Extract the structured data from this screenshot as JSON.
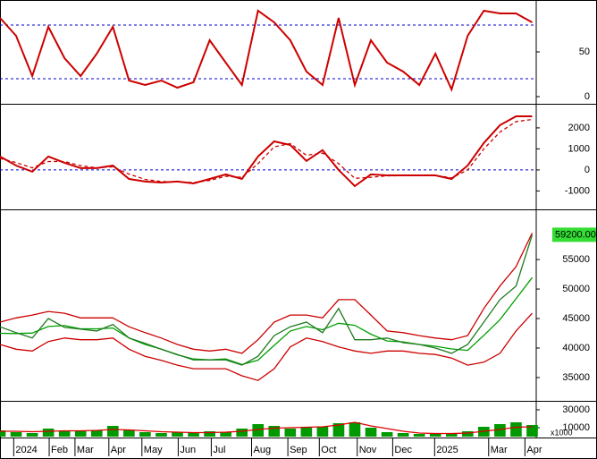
{
  "chart_data": [
    {
      "type": "line",
      "x": [
        0,
        2,
        4,
        6,
        8,
        10,
        12,
        14,
        16,
        18,
        20,
        22,
        24,
        26,
        28,
        30,
        32,
        34,
        36,
        38,
        40,
        42,
        44,
        46,
        48,
        50,
        52,
        54,
        56,
        58,
        60,
        62,
        64,
        66
      ],
      "xlim": [
        0,
        66.5
      ],
      "ylim": [
        -7,
        108
      ],
      "yticks": [
        50,
        0
      ],
      "ref_lines": [
        20,
        80
      ],
      "series": [
        {
          "color": "#cc0000",
          "values": [
            88,
            68,
            23,
            78,
            43,
            23,
            48,
            78,
            18,
            13,
            18,
            10,
            16,
            63,
            38,
            13,
            96,
            83,
            63,
            28,
            13,
            88,
            13,
            63,
            38,
            28,
            13,
            48,
            8,
            68,
            96,
            93,
            93,
            83
          ]
        }
      ]
    },
    {
      "type": "line",
      "x": [
        0,
        2,
        4,
        6,
        8,
        10,
        12,
        14,
        16,
        18,
        20,
        22,
        24,
        26,
        28,
        30,
        32,
        34,
        36,
        38,
        40,
        42,
        44,
        46,
        48,
        50,
        52,
        54,
        56,
        58,
        60,
        62,
        64,
        66
      ],
      "xlim": [
        0,
        66.5
      ],
      "ylim": [
        -1790,
        3060
      ],
      "yticks": [
        2000,
        1000,
        0,
        -1000
      ],
      "ref_lines": [
        0
      ],
      "series": [
        {
          "color": "#cc0000",
          "values": [
            640,
            210,
            -85,
            640,
            340,
            85,
            85,
            210,
            -430,
            -550,
            -600,
            -550,
            -640,
            -430,
            -210,
            -430,
            640,
            1360,
            1190,
            430,
            940,
            0,
            -770,
            -210,
            -260,
            -260,
            -260,
            -260,
            -430,
            210,
            1280,
            2130,
            2550,
            2550
          ]
        },
        {
          "color": "#cc0000",
          "dashed": true,
          "values": [
            550,
            350,
            100,
            400,
            400,
            200,
            100,
            150,
            -200,
            -450,
            -550,
            -570,
            -600,
            -500,
            -300,
            -350,
            300,
            1100,
            1250,
            700,
            800,
            300,
            -400,
            -350,
            -280,
            -270,
            -260,
            -260,
            -380,
            0,
            1000,
            1800,
            2300,
            2400
          ]
        }
      ]
    },
    {
      "type": "line",
      "x": [
        0,
        2,
        4,
        6,
        8,
        10,
        12,
        14,
        16,
        18,
        20,
        22,
        24,
        26,
        28,
        30,
        32,
        34,
        36,
        38,
        40,
        42,
        44,
        46,
        48,
        50,
        52,
        54,
        56,
        58,
        60,
        62,
        64,
        66
      ],
      "xlim": [
        0,
        66.5
      ],
      "ylim": [
        31200,
        63200
      ],
      "yticks": [
        55000,
        50000,
        45000,
        40000,
        35000
      ],
      "last_price": {
        "value": 59200,
        "label": "59200.00"
      },
      "series": [
        {
          "color": "#cc0000",
          "values": [
            44400,
            45100,
            45600,
            46200,
            45900,
            45100,
            45100,
            45100,
            43600,
            42600,
            41700,
            40600,
            39800,
            39500,
            39800,
            39100,
            41400,
            44400,
            45600,
            45600,
            45100,
            48200,
            48200,
            45600,
            42900,
            42600,
            42100,
            41700,
            41400,
            42100,
            46700,
            50500,
            53800,
            59500
          ]
        },
        {
          "color": "#cc0000",
          "values": [
            40600,
            39800,
            39500,
            41100,
            41700,
            41400,
            41400,
            41700,
            39800,
            38600,
            37900,
            37100,
            36500,
            36500,
            36500,
            35300,
            34500,
            36500,
            40200,
            41700,
            41100,
            40200,
            39500,
            39100,
            39500,
            39500,
            39100,
            38900,
            38300,
            37100,
            37600,
            39100,
            42900,
            45900
          ]
        },
        {
          "color": "#00a000",
          "values": [
            42500,
            42450,
            42550,
            43650,
            43800,
            43250,
            43250,
            43400,
            41700,
            40600,
            39800,
            38850,
            38150,
            38000,
            38150,
            37200,
            37950,
            40450,
            42900,
            43650,
            43100,
            44200,
            43850,
            42350,
            41200,
            41050,
            40600,
            40300,
            39850,
            39600,
            42150,
            44800,
            48350,
            51950
          ]
        },
        {
          "color": "#1f7a1f",
          "values": [
            43600,
            42600,
            41700,
            45000,
            43500,
            43200,
            42900,
            44000,
            41700,
            40800,
            39800,
            38900,
            38000,
            38000,
            38000,
            37100,
            38600,
            42100,
            43600,
            44400,
            42600,
            46700,
            41400,
            41400,
            41700,
            40900,
            40600,
            40000,
            39100,
            40600,
            44400,
            48200,
            50500,
            59200
          ]
        }
      ]
    },
    {
      "type": "bar",
      "x": [
        0,
        2,
        4,
        6,
        8,
        10,
        12,
        14,
        16,
        18,
        20,
        22,
        24,
        26,
        28,
        30,
        32,
        34,
        36,
        38,
        40,
        42,
        44,
        46,
        48,
        50,
        52,
        54,
        56,
        58,
        60,
        62,
        64,
        66
      ],
      "xlim": [
        0,
        66.5
      ],
      "ylim": [
        -1000,
        39000
      ],
      "yticks": [
        30000,
        10000
      ],
      "unit_label": "x1000",
      "xticks": [
        {
          "value": 1.7,
          "label": "2024"
        },
        {
          "value": 6.1,
          "label": "Feb"
        },
        {
          "value": 9.3,
          "label": "Mar"
        },
        {
          "value": 13.5,
          "label": "Apr"
        },
        {
          "value": 17.6,
          "label": "May"
        },
        {
          "value": 22.1,
          "label": "Jun"
        },
        {
          "value": 26.2,
          "label": "Jul"
        },
        {
          "value": 31.2,
          "label": "Aug"
        },
        {
          "value": 35.7,
          "label": "Sep"
        },
        {
          "value": 39.6,
          "label": "Oct"
        },
        {
          "value": 44.3,
          "label": "Nov"
        },
        {
          "value": 48.7,
          "label": "Dec"
        },
        {
          "value": 53.9,
          "label": "2025"
        },
        {
          "value": 60.6,
          "label": "Mar"
        },
        {
          "value": 65.1,
          "label": "Apr"
        }
      ],
      "series": [
        {
          "color": "#009900",
          "values": [
            7000,
            5000,
            4000,
            9000,
            6000,
            6000,
            7000,
            12000,
            7000,
            5000,
            4000,
            5000,
            4000,
            6000,
            5000,
            9000,
            14000,
            12000,
            9000,
            10000,
            11000,
            15000,
            16000,
            10000,
            5000,
            4000,
            3000,
            3000,
            4000,
            6000,
            11000,
            14000,
            16000,
            13000
          ]
        },
        {
          "color": "#dd0000",
          "kind": "line",
          "values": [
            6000,
            6000,
            5500,
            6000,
            6500,
            6500,
            7000,
            8000,
            7500,
            6500,
            5500,
            5000,
            4500,
            4500,
            5000,
            6000,
            8000,
            9500,
            10000,
            10500,
            11000,
            13000,
            16000,
            12000,
            9000,
            6000,
            4000,
            3500,
            3500,
            4000,
            6000,
            8000,
            10500,
            11000
          ]
        }
      ]
    }
  ]
}
